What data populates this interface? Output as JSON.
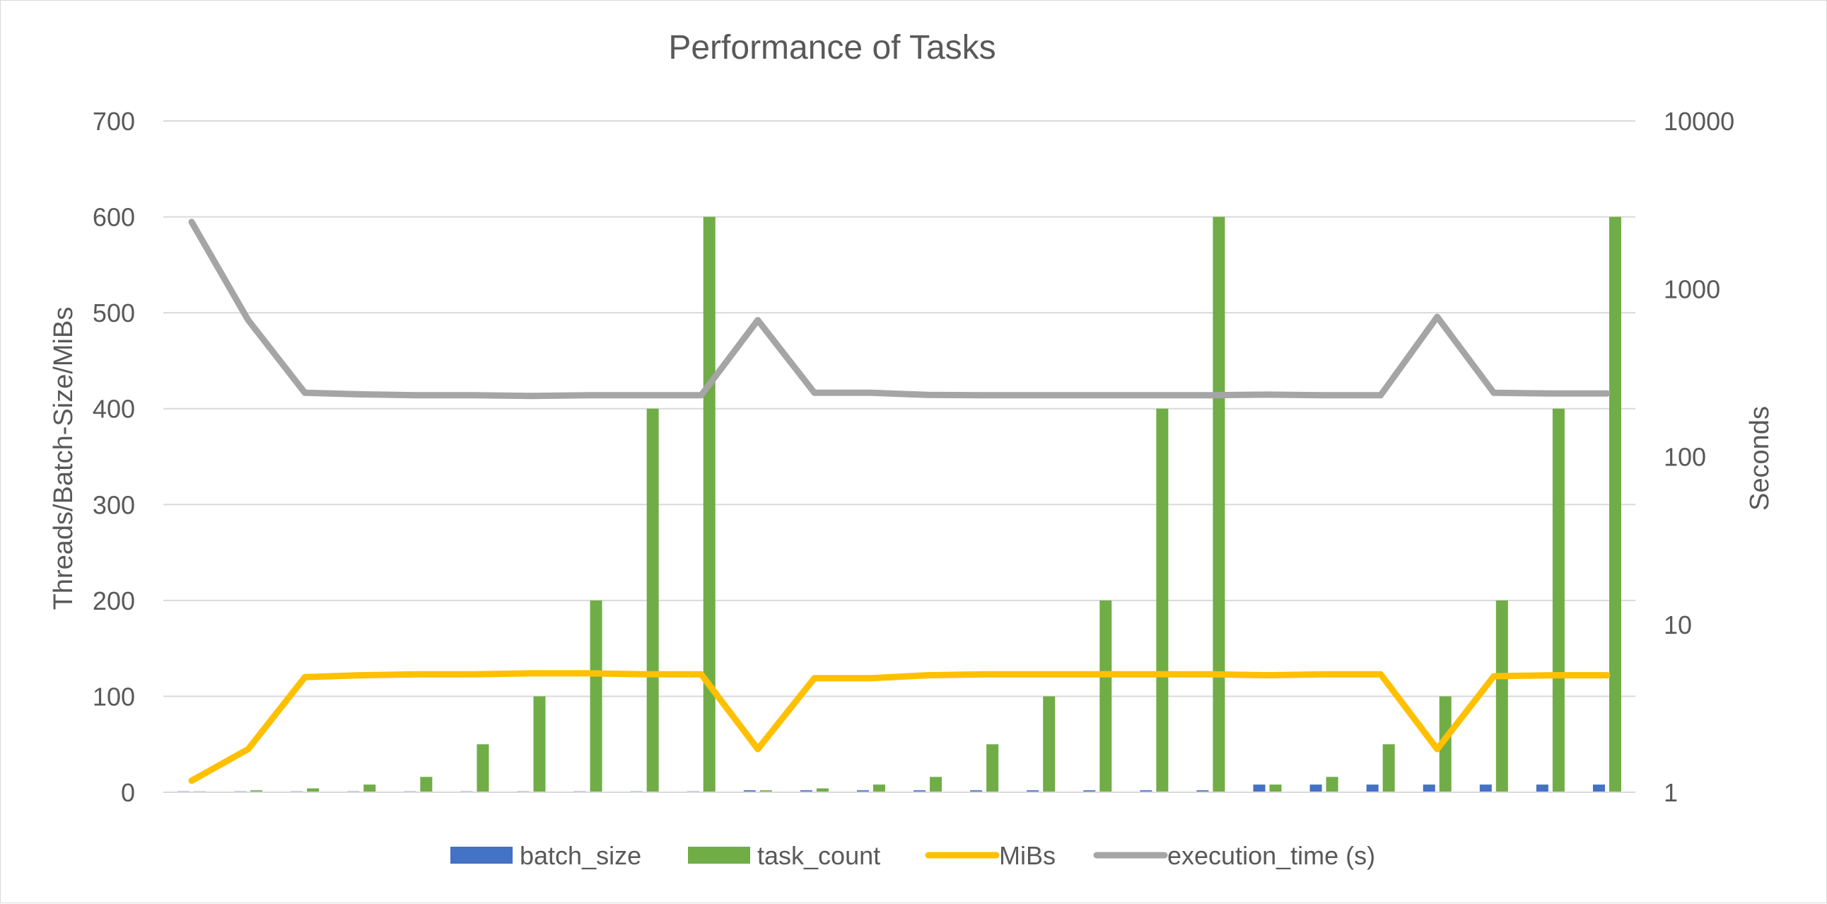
{
  "chart_data": {
    "type": "bar",
    "title": "Performance of Tasks",
    "y_left": {
      "label": "Threads/Batch-Size/MiBs",
      "min": 0,
      "max": 700,
      "ticks": [
        0,
        100,
        200,
        300,
        400,
        500,
        600,
        700
      ],
      "tick_labels": [
        "0",
        "100",
        "200",
        "300",
        "400",
        "500",
        "600",
        "700"
      ]
    },
    "y_right": {
      "label": "Seconds",
      "scale": "log",
      "min": 1,
      "max": 10000,
      "ticks": [
        1,
        10,
        100,
        1000,
        10000
      ],
      "tick_labels": [
        "1",
        "10",
        "100",
        "1000",
        "10000"
      ]
    },
    "grid": true,
    "legend_position": "bottom",
    "category_count": 26,
    "series": [
      {
        "name": "batch_size",
        "kind": "bar",
        "axis": "left",
        "color": "#4472c4",
        "values": [
          1,
          1,
          1,
          1,
          1,
          1,
          1,
          1,
          1,
          1,
          2,
          2,
          2,
          2,
          2,
          2,
          2,
          2,
          2,
          8,
          8,
          8,
          8,
          8,
          8,
          8
        ]
      },
      {
        "name": "task_count",
        "kind": "bar",
        "axis": "left",
        "color": "#70ad47",
        "values": [
          1,
          2,
          4,
          8,
          16,
          50,
          100,
          200,
          400,
          600,
          2,
          4,
          8,
          16,
          50,
          100,
          200,
          400,
          600,
          8,
          16,
          50,
          100,
          200,
          400,
          600
        ]
      },
      {
        "name": "MiBs",
        "kind": "line",
        "axis": "left",
        "color": "#ffc000",
        "values": [
          12,
          45,
          120,
          122,
          123,
          123,
          124,
          124,
          123,
          123,
          45,
          119,
          119,
          122,
          123,
          123,
          123,
          123,
          123,
          122,
          123,
          123,
          45,
          121,
          122,
          122
        ]
      },
      {
        "name": "execution_time (s)",
        "kind": "line",
        "axis": "right",
        "color": "#a5a5a5",
        "values": [
          2500,
          650,
          240,
          235,
          232,
          232,
          230,
          232,
          232,
          232,
          650,
          240,
          240,
          233,
          232,
          232,
          232,
          232,
          232,
          234,
          232,
          232,
          680,
          240,
          238,
          238
        ]
      }
    ]
  }
}
